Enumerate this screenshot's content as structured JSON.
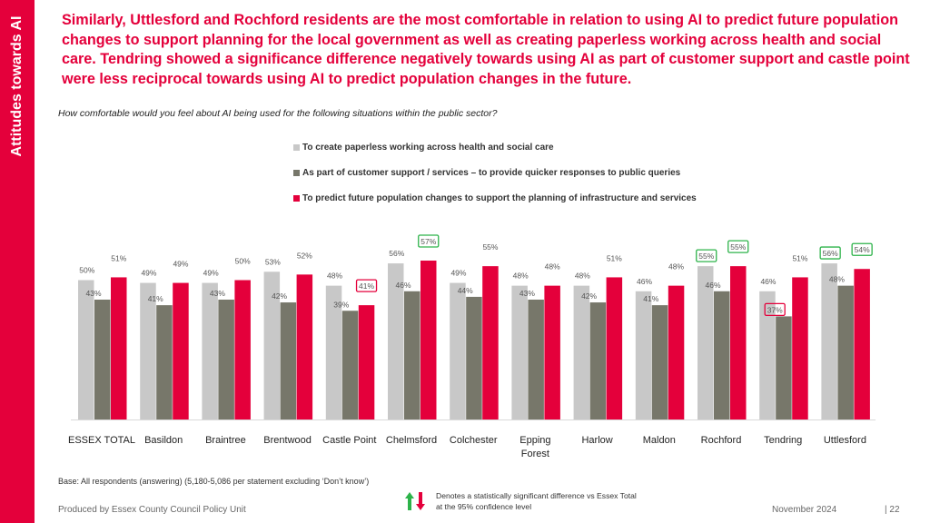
{
  "sidebar": {
    "title": "Attitudes towards AI"
  },
  "headline": "Similarly, Uttlesford and Rochford residents are the most comfortable in relation to using AI to predict future population changes to support planning for the local government as well as creating paperless working across health and social care. Tendring showed a significance difference negatively towards using AI as part of customer support and castle point were less reciprocal towards using AI to predict population changes in the future.",
  "question": "How comfortable would you feel about AI being used for the following situations within the public sector?",
  "colors": {
    "accent": "#e4003b",
    "series1": "#c8c8c8",
    "series2": "#77776a",
    "series3": "#e4003b",
    "sig_box": "#2db34a",
    "sig_box_low": "#e4003b"
  },
  "chart_data": {
    "type": "bar",
    "title": "",
    "xlabel": "",
    "ylabel": "",
    "ylim": [
      0,
      75
    ],
    "categories": [
      "ESSEX TOTAL",
      "Basildon",
      "Braintree",
      "Brentwood",
      "Castle Point",
      "Chelmsford",
      "Colchester",
      "Epping Forest",
      "Harlow",
      "Maldon",
      "Rochford",
      "Tendring",
      "Uttlesford"
    ],
    "series": [
      {
        "name": "To create paperless working across health and social care",
        "values": [
          50,
          49,
          49,
          53,
          48,
          56,
          49,
          48,
          48,
          46,
          55,
          46,
          56
        ]
      },
      {
        "name": "As part of customer support / services – to provide quicker responses to public queries",
        "values": [
          43,
          41,
          43,
          42,
          39,
          46,
          44,
          43,
          42,
          41,
          46,
          37,
          48
        ]
      },
      {
        "name": "To predict future population changes to support the planning of infrastructure and services",
        "values": [
          51,
          49,
          50,
          52,
          41,
          57,
          55,
          48,
          51,
          48,
          55,
          51,
          54
        ]
      }
    ],
    "significance": [
      {
        "category": "Castle Point",
        "series": 2,
        "direction": "lower"
      },
      {
        "category": "Chelmsford",
        "series": 2,
        "direction": "higher"
      },
      {
        "category": "Rochford",
        "series": 0,
        "direction": "higher"
      },
      {
        "category": "Rochford",
        "series": 2,
        "direction": "higher"
      },
      {
        "category": "Tendring",
        "series": 1,
        "direction": "lower"
      },
      {
        "category": "Uttlesford",
        "series": 0,
        "direction": "higher"
      },
      {
        "category": "Uttlesford",
        "series": 2,
        "direction": "higher"
      }
    ]
  },
  "footer": {
    "base": "Base: All respondents (answering) (5,180-5,086 per statement excluding ‘Don’t know’)",
    "denotes": "Denotes a statistically significant difference vs Essex Total at the 95% confidence level",
    "producer": "Produced by Essex County Council Policy Unit",
    "date": "November 2024",
    "page": "|  22"
  }
}
